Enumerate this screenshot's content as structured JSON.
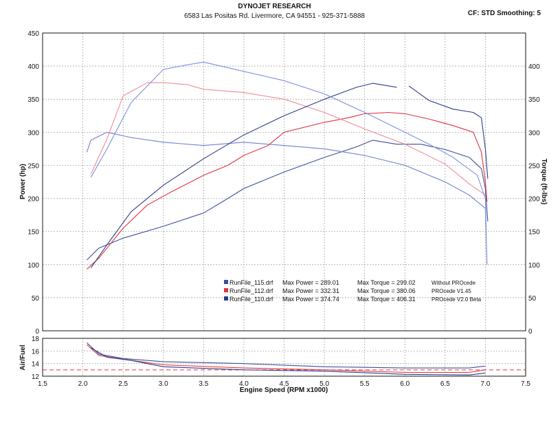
{
  "header": {
    "title": "DYNOJET RESEARCH",
    "address": "6583 Las Positas Rd. Livermore, CA 94551 - 925-371-5888",
    "corner": "CF: STD  Smoothing: 5"
  },
  "chart_data": [
    {
      "type": "line",
      "xlabel": "Engine Speed (RPM x1000)",
      "ylabel_left": "Power (hp)",
      "ylabel_right": "Torque (ft-lbs)",
      "xlim": [
        1.5,
        7.5
      ],
      "ylim": [
        0,
        450
      ],
      "xticks": [
        "1.5",
        "2.0",
        "2.5",
        "3.0",
        "3.5",
        "4.0",
        "4.5",
        "5.0",
        "5.5",
        "6.0",
        "6.5",
        "7.0",
        "7.5"
      ],
      "yticks_left": [
        "0",
        "50",
        "100",
        "150",
        "200",
        "250",
        "300",
        "350",
        "400",
        "450"
      ],
      "yticks_right": [
        "0",
        "50",
        "100",
        "150",
        "200",
        "250",
        "300",
        "350",
        "400"
      ],
      "grid": true,
      "legend": [
        {
          "file": "RunFile_115.drf",
          "max_power_label": "Max Power = 289.01",
          "max_torque_label": "Max Torque = 299.02",
          "note": "Without PROcede",
          "color": "#3a4f9c"
        },
        {
          "file": "RunFile_112.drf",
          "max_power_label": "Max Power = 332.31",
          "max_torque_label": "Max Torque = 380.06",
          "note": "PROcede V1.45",
          "color": "#e0333f"
        },
        {
          "file": "RunFile_110.drf",
          "max_power_label": "Max Power = 374.74",
          "max_torque_label": "Max Torque = 406.31",
          "note": "PROcede V2.0 Beta",
          "color": "#2c3a8a"
        }
      ],
      "series": [
        {
          "kind": "power",
          "color": "#3a4f9c",
          "points": [
            [
              2.05,
              107
            ],
            [
              2.2,
              125
            ],
            [
              2.5,
              140
            ],
            [
              3.0,
              158
            ],
            [
              3.5,
              178
            ],
            [
              3.8,
              200
            ],
            [
              4.0,
              215
            ],
            [
              4.5,
              240
            ],
            [
              5.0,
              262
            ],
            [
              5.4,
              278
            ],
            [
              5.6,
              288
            ],
            [
              5.9,
              282
            ],
            [
              6.2,
              282
            ],
            [
              6.5,
              274
            ],
            [
              6.8,
              262
            ],
            [
              6.95,
              245
            ],
            [
              7.0,
              215
            ],
            [
              7.03,
              165
            ]
          ]
        },
        {
          "kind": "torque",
          "color": "#6d7fd0",
          "points": [
            [
              2.05,
              270
            ],
            [
              2.1,
              288
            ],
            [
              2.3,
              300
            ],
            [
              2.6,
              292
            ],
            [
              3.0,
              285
            ],
            [
              3.5,
              280
            ],
            [
              4.0,
              285
            ],
            [
              4.5,
              280
            ],
            [
              5.0,
              275
            ],
            [
              5.5,
              265
            ],
            [
              6.0,
              250
            ],
            [
              6.5,
              225
            ],
            [
              6.8,
              205
            ],
            [
              7.0,
              185
            ],
            [
              7.02,
              100
            ]
          ]
        },
        {
          "kind": "power",
          "color": "#e0333f",
          "points": [
            [
              2.05,
              93
            ],
            [
              2.2,
              110
            ],
            [
              2.5,
              155
            ],
            [
              2.8,
              190
            ],
            [
              3.1,
              210
            ],
            [
              3.5,
              235
            ],
            [
              3.8,
              250
            ],
            [
              4.0,
              265
            ],
            [
              4.3,
              280
            ],
            [
              4.5,
              300
            ],
            [
              5.0,
              315
            ],
            [
              5.3,
              322
            ],
            [
              5.5,
              328
            ],
            [
              5.8,
              330
            ],
            [
              6.0,
              328
            ],
            [
              6.3,
              320
            ],
            [
              6.6,
              310
            ],
            [
              6.85,
              300
            ],
            [
              6.95,
              270
            ],
            [
              7.0,
              225
            ],
            [
              7.02,
              195
            ]
          ]
        },
        {
          "kind": "torque",
          "color": "#f08c96",
          "points": [
            [
              2.1,
              237
            ],
            [
              2.3,
              290
            ],
            [
              2.5,
              355
            ],
            [
              2.8,
              375
            ],
            [
              3.0,
              375
            ],
            [
              3.3,
              372
            ],
            [
              3.5,
              365
            ],
            [
              4.0,
              360
            ],
            [
              4.5,
              350
            ],
            [
              5.0,
              330
            ],
            [
              5.5,
              305
            ],
            [
              6.0,
              282
            ],
            [
              6.5,
              252
            ],
            [
              6.8,
              222
            ],
            [
              7.0,
              205
            ]
          ]
        },
        {
          "kind": "power",
          "color": "#2c3a8a",
          "points": [
            [
              2.1,
              95
            ],
            [
              2.3,
              130
            ],
            [
              2.6,
              180
            ],
            [
              3.0,
              220
            ],
            [
              3.5,
              260
            ],
            [
              4.0,
              296
            ],
            [
              4.5,
              325
            ],
            [
              5.0,
              350
            ],
            [
              5.4,
              368
            ],
            [
              5.6,
              374
            ],
            [
              5.9,
              368
            ]
          ]
        },
        {
          "kind": "power",
          "color": "#2c3a8a",
          "points": [
            [
              6.05,
              370
            ],
            [
              6.3,
              348
            ],
            [
              6.6,
              335
            ],
            [
              6.85,
              330
            ],
            [
              6.95,
              322
            ],
            [
              7.0,
              275
            ],
            [
              7.03,
              230
            ]
          ]
        },
        {
          "kind": "torque",
          "color": "#7e8fe0",
          "points": [
            [
              2.1,
              232
            ],
            [
              2.3,
              275
            ],
            [
              2.6,
              345
            ],
            [
              3.0,
              395
            ],
            [
              3.3,
              402
            ],
            [
              3.5,
              406
            ],
            [
              4.0,
              392
            ],
            [
              4.5,
              378
            ],
            [
              5.0,
              358
            ],
            [
              5.5,
              330
            ],
            [
              6.0,
              300
            ],
            [
              6.3,
              282
            ],
            [
              6.6,
              262
            ],
            [
              6.9,
              235
            ],
            [
              7.0,
              200
            ],
            [
              7.01,
              150
            ]
          ]
        }
      ]
    },
    {
      "type": "line",
      "ylabel": "Air/Fuel",
      "xlim": [
        1.5,
        7.5
      ],
      "ylim": [
        12,
        18
      ],
      "yticks": [
        "12",
        "14",
        "16",
        "18"
      ],
      "reference_line": 13,
      "series": [
        {
          "color": "#3a4f9c",
          "points": [
            [
              2.05,
              17.3
            ],
            [
              2.2,
              15.5
            ],
            [
              2.5,
              14.8
            ],
            [
              3.0,
              14.3
            ],
            [
              4.0,
              14.0
            ],
            [
              5.0,
              13.5
            ],
            [
              6.0,
              13.3
            ],
            [
              6.8,
              13.3
            ],
            [
              7.0,
              13.6
            ]
          ]
        },
        {
          "color": "#e0333f",
          "points": [
            [
              2.05,
              17.0
            ],
            [
              2.2,
              15.3
            ],
            [
              2.5,
              14.7
            ],
            [
              3.0,
              13.8
            ],
            [
              4.0,
              13.3
            ],
            [
              5.0,
              13.0
            ],
            [
              6.0,
              12.6
            ],
            [
              6.8,
              12.6
            ],
            [
              7.0,
              13.0
            ]
          ]
        },
        {
          "color": "#2c3a8a",
          "points": [
            [
              2.1,
              16.5
            ],
            [
              2.3,
              15.0
            ],
            [
              2.6,
              14.5
            ],
            [
              3.0,
              13.5
            ],
            [
              4.0,
              13.0
            ],
            [
              5.0,
              12.8
            ],
            [
              6.0,
              12.3
            ],
            [
              6.8,
              12.2
            ],
            [
              7.0,
              12.5
            ]
          ]
        }
      ]
    }
  ]
}
